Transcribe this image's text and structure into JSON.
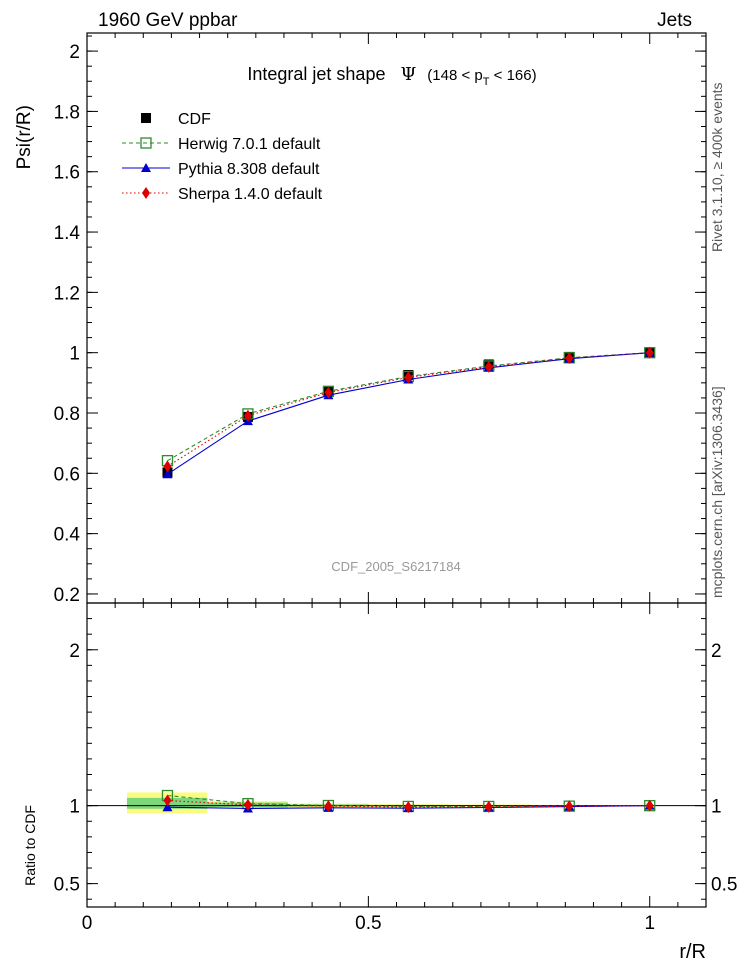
{
  "header": {
    "left": "1960 GeV ppbar",
    "right": "Jets"
  },
  "side_labels": {
    "rivet": "Rivet 3.1.10, ≥ 400k events",
    "mcplots": "mcplots.cern.ch [arXiv:1306.3436]"
  },
  "watermark": "CDF_2005_S6217184",
  "colors": {
    "cdf": "#000000",
    "herwig": "#2e8b2e",
    "pythia": "#0000cc",
    "sherpa": "#dd0000",
    "band_inner": "#7cd67c",
    "band_outer": "#fbfb80"
  },
  "chart_data": [
    {
      "type": "line",
      "title": "Integral jet shape",
      "title_symbol": "Ψ",
      "title_range": "(148 < p",
      "title_range_sub": "T",
      "title_range_end": " < 166)",
      "ylabel": "Psi(r/R)",
      "xlabel": "",
      "xlim": [
        0,
        1.1
      ],
      "ylim": [
        0.17,
        2.06
      ],
      "yticks": [
        0.2,
        0.4,
        0.6,
        0.8,
        1,
        1.2,
        1.4,
        1.6,
        1.8,
        2
      ],
      "ytick_labels": [
        "0.2",
        "0.4",
        "0.6",
        "0.8",
        "1",
        "1.2",
        "1.4",
        "1.6",
        "1.8",
        "2"
      ],
      "x": [
        0.143,
        0.286,
        0.429,
        0.571,
        0.714,
        0.857,
        1.0
      ],
      "series": [
        {
          "name": "CDF",
          "marker": "square",
          "values": [
            0.603,
            0.787,
            0.871,
            0.926,
            0.961,
            0.986,
            1.0
          ]
        },
        {
          "name": "Herwig 7.0.1 default",
          "marker": "open-square",
          "line": "dashed",
          "values": [
            0.642,
            0.797,
            0.872,
            0.921,
            0.956,
            0.983,
            1.0
          ]
        },
        {
          "name": "Pythia 8.308 default",
          "marker": "triangle",
          "line": "solid",
          "values": [
            0.597,
            0.773,
            0.859,
            0.911,
            0.95,
            0.98,
            1.0
          ]
        },
        {
          "name": "Sherpa 1.4.0 default",
          "marker": "diamond",
          "line": "dotted",
          "values": [
            0.623,
            0.791,
            0.868,
            0.918,
            0.953,
            0.982,
            1.0
          ]
        }
      ]
    },
    {
      "type": "line",
      "title": "",
      "ylabel": "Ratio to CDF",
      "xlabel": "r/R",
      "xlim": [
        0,
        1.1
      ],
      "ylim": [
        0.35,
        2.3
      ],
      "yticks": [
        0.5,
        1,
        2
      ],
      "ytick_labels": [
        "0.5",
        "1",
        "2"
      ],
      "xticks": [
        0,
        0.5,
        1
      ],
      "xtick_labels": [
        "0",
        "0.5",
        "1"
      ],
      "x": [
        0.143,
        0.286,
        0.429,
        0.571,
        0.714,
        0.857,
        1.0
      ],
      "bands": [
        {
          "x0": 0.071,
          "x1": 0.214,
          "outer": [
            0.95,
            1.085
          ],
          "inner": [
            0.98,
            1.05
          ]
        },
        {
          "x0": 0.214,
          "x1": 0.357,
          "outer": [
            0.985,
            1.03
          ],
          "inner": [
            0.99,
            1.02
          ]
        },
        {
          "x0": 0.357,
          "x1": 0.5,
          "outer": [
            0.99,
            1.015
          ],
          "inner": [
            0.995,
            1.008
          ]
        },
        {
          "x0": 0.5,
          "x1": 0.643,
          "outer": [
            0.993,
            1.01
          ],
          "inner": [
            0.996,
            1.005
          ]
        },
        {
          "x0": 0.643,
          "x1": 0.786,
          "outer": [
            0.995,
            1.008
          ],
          "inner": [
            0.998,
            1.004
          ]
        },
        {
          "x0": 0.786,
          "x1": 0.929,
          "outer": [
            0.997,
            1.005
          ],
          "inner": [
            0.999,
            1.003
          ]
        }
      ],
      "series": [
        {
          "name": "Herwig 7.0.1 default",
          "marker": "open-square",
          "line": "dashed",
          "values": [
            1.065,
            1.013,
            1.001,
            0.995,
            0.995,
            0.997,
            1.0
          ]
        },
        {
          "name": "Pythia 8.308 default",
          "marker": "triangle",
          "line": "solid",
          "values": [
            0.99,
            0.982,
            0.986,
            0.984,
            0.988,
            0.994,
            1.0
          ]
        },
        {
          "name": "Sherpa 1.4.0 default",
          "marker": "diamond",
          "line": "dotted",
          "values": [
            1.033,
            1.005,
            0.997,
            0.991,
            0.992,
            0.996,
            1.0
          ]
        }
      ]
    }
  ]
}
